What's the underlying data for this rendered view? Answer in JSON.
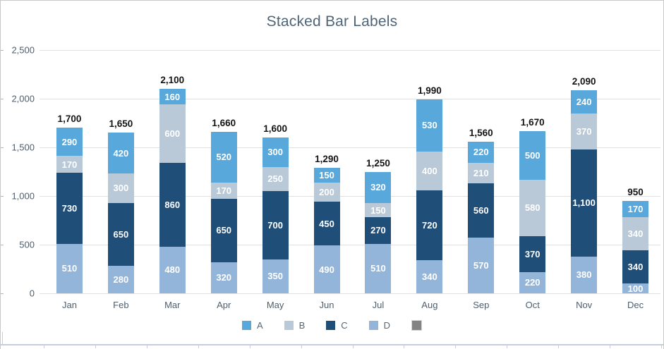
{
  "window": {
    "border_color": "#c9c9c9",
    "background": "#ffffff"
  },
  "chart_data": {
    "type": "bar",
    "stacked": true,
    "title": "Stacked Bar Labels",
    "xlabel": "",
    "ylabel": "",
    "ylim": [
      0,
      2500
    ],
    "grid": true,
    "y_ticks": [
      0,
      500,
      1000,
      1500,
      2000,
      2500
    ],
    "y_tick_labels": [
      "0",
      "500",
      "1,000",
      "1,500",
      "2,000",
      "2,500"
    ],
    "categories": [
      "Jan",
      "Feb",
      "Mar",
      "Apr",
      "May",
      "Jun",
      "Jul",
      "Aug",
      "Sep",
      "Oct",
      "Nov",
      "Dec"
    ],
    "series": [
      {
        "name": "D",
        "color": "#94b5da",
        "values": [
          510,
          280,
          480,
          320,
          350,
          490,
          510,
          340,
          570,
          220,
          380,
          100
        ]
      },
      {
        "name": "C",
        "color": "#1f4e79",
        "values": [
          730,
          650,
          860,
          650,
          700,
          450,
          270,
          720,
          560,
          370,
          1100,
          340
        ]
      },
      {
        "name": "B",
        "color": "#b9c9d8",
        "values": [
          170,
          300,
          600,
          170,
          250,
          200,
          150,
          400,
          210,
          580,
          370,
          340
        ]
      },
      {
        "name": "A",
        "color": "#58a8dc",
        "values": [
          290,
          420,
          160,
          520,
          300,
          150,
          320,
          530,
          220,
          500,
          240,
          170
        ]
      }
    ],
    "totals": [
      1700,
      1650,
      2100,
      1660,
      1600,
      1290,
      1250,
      1990,
      1560,
      1670,
      2090,
      950
    ],
    "total_labels": [
      "1,700",
      "1,650",
      "2,100",
      "1,660",
      "1,600",
      "1,290",
      "1,250",
      "1,990",
      "1,560",
      "1,670",
      "2,090",
      "950"
    ],
    "legend_position": "bottom",
    "legend": [
      {
        "label": "A",
        "color": "#58a8dc"
      },
      {
        "label": "B",
        "color": "#b9c9d8"
      },
      {
        "label": "C",
        "color": "#1f4e79"
      },
      {
        "label": "D",
        "color": "#94b5da"
      },
      {
        "label": "",
        "color": "#838383"
      }
    ],
    "colors": {
      "title_text": "#4f6577",
      "axis_text": "#4e5e6d",
      "gridline": "#e0e0e0",
      "total_label_text": "#151515",
      "segment_label_text": "#ffffff",
      "bottom_strip": "#c7cde0"
    }
  }
}
